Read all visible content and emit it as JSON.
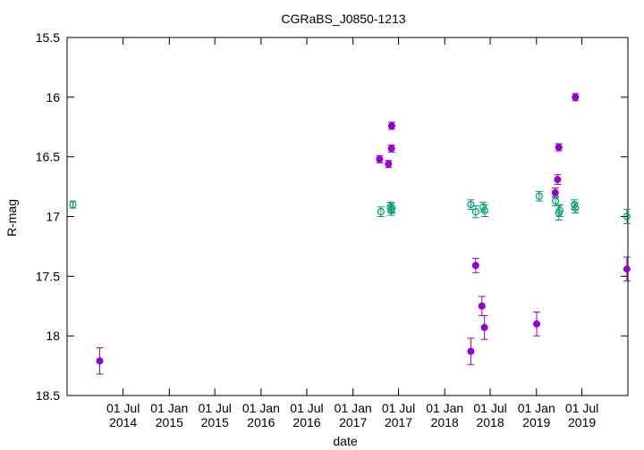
{
  "chart_data": {
    "type": "scatter",
    "title": "CGRaBS_J0850-1213",
    "xlabel": "date",
    "ylabel": "R-mag",
    "y_reversed": true,
    "ylim": [
      15.5,
      18.5
    ],
    "yticks": [
      "15.5",
      "16",
      "16.5",
      "17",
      "17.5",
      "18",
      "18.5"
    ],
    "xlim": [
      "2013-11-20",
      "2019-12-31"
    ],
    "xticks": [
      {
        "date": "2014-07-01",
        "line1": "01 Jul",
        "line2": "2014"
      },
      {
        "date": "2015-01-01",
        "line1": "01 Jan",
        "line2": "2015"
      },
      {
        "date": "2015-07-01",
        "line1": "01 Jul",
        "line2": "2015"
      },
      {
        "date": "2016-01-01",
        "line1": "01 Jan",
        "line2": "2016"
      },
      {
        "date": "2016-07-01",
        "line1": "01 Jul",
        "line2": "2016"
      },
      {
        "date": "2017-01-01",
        "line1": "01 Jan",
        "line2": "2017"
      },
      {
        "date": "2017-07-01",
        "line1": "01 Jul",
        "line2": "2017"
      },
      {
        "date": "2018-01-01",
        "line1": "01 Jan",
        "line2": "2018"
      },
      {
        "date": "2018-07-01",
        "line1": "01 Jul",
        "line2": "2018"
      },
      {
        "date": "2019-01-01",
        "line1": "01 Jan",
        "line2": "2019"
      },
      {
        "date": "2019-07-01",
        "line1": "01 Jul",
        "line2": "2019"
      }
    ],
    "grid": false,
    "legend": "none",
    "series": [
      {
        "color": "#9400d3",
        "marker": "filled-circle",
        "points": [
          {
            "x": "2014-03-30",
            "y": 18.21,
            "err": 0.11
          },
          {
            "x": "2017-04-17",
            "y": 16.52,
            "err": 0.03
          },
          {
            "x": "2017-05-22",
            "y": 16.56,
            "err": 0.03
          },
          {
            "x": "2017-06-03",
            "y": 16.43,
            "err": 0.03
          },
          {
            "x": "2017-06-04",
            "y": 16.24,
            "err": 0.03
          },
          {
            "x": "2018-04-15",
            "y": 18.13,
            "err": 0.11
          },
          {
            "x": "2018-05-04",
            "y": 17.41,
            "err": 0.06
          },
          {
            "x": "2018-05-29",
            "y": 17.75,
            "err": 0.08
          },
          {
            "x": "2018-06-08",
            "y": 17.93,
            "err": 0.1
          },
          {
            "x": "2019-01-02",
            "y": 17.9,
            "err": 0.1
          },
          {
            "x": "2019-03-17",
            "y": 16.8,
            "err": 0.04
          },
          {
            "x": "2019-03-26",
            "y": 16.69,
            "err": 0.04
          },
          {
            "x": "2019-03-31",
            "y": 16.42,
            "err": 0.03
          },
          {
            "x": "2019-06-05",
            "y": 16.0,
            "err": 0.03
          },
          {
            "x": "2019-12-27",
            "y": 17.44,
            "err": 0.1
          }
        ]
      },
      {
        "color": "#009e73",
        "marker": "open-circle",
        "points": [
          {
            "x": "2013-12-13",
            "y": 16.9,
            "err": 0.03
          },
          {
            "x": "2017-04-22",
            "y": 16.96,
            "err": 0.04
          },
          {
            "x": "2017-05-30",
            "y": 16.92,
            "err": 0.04
          },
          {
            "x": "2017-06-02",
            "y": 16.95,
            "err": 0.04
          },
          {
            "x": "2017-06-05",
            "y": 16.93,
            "err": 0.04
          },
          {
            "x": "2018-04-15",
            "y": 16.9,
            "err": 0.04
          },
          {
            "x": "2018-05-04",
            "y": 16.96,
            "err": 0.05
          },
          {
            "x": "2018-06-03",
            "y": 16.92,
            "err": 0.04
          },
          {
            "x": "2018-06-09",
            "y": 16.95,
            "err": 0.05
          },
          {
            "x": "2019-01-12",
            "y": 16.83,
            "err": 0.04
          },
          {
            "x": "2019-03-18",
            "y": 16.87,
            "err": 0.04
          },
          {
            "x": "2019-03-31",
            "y": 16.97,
            "err": 0.06
          },
          {
            "x": "2019-04-04",
            "y": 16.95,
            "err": 0.05
          },
          {
            "x": "2019-06-01",
            "y": 16.9,
            "err": 0.04
          },
          {
            "x": "2019-06-05",
            "y": 16.93,
            "err": 0.04
          },
          {
            "x": "2019-12-27",
            "y": 17.0,
            "err": 0.06
          }
        ]
      }
    ]
  }
}
